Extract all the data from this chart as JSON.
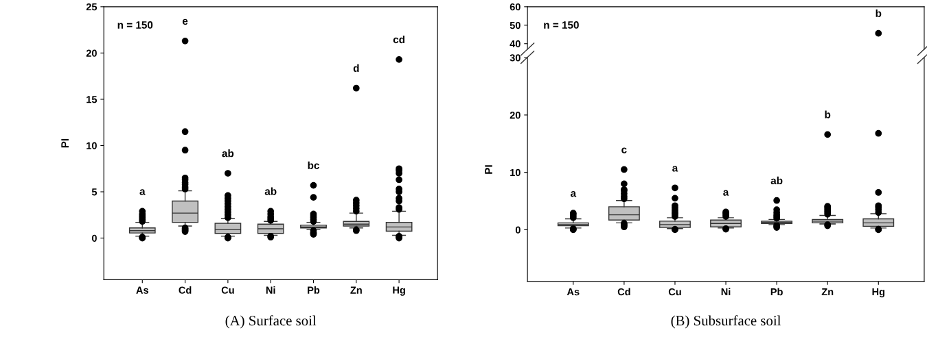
{
  "chart_data": [
    {
      "type": "box",
      "ylabel": "PI",
      "subtitle": "(A) Surface soil",
      "categories": [
        "As",
        "Cd",
        "Cu",
        "Ni",
        "Pb",
        "Zn",
        "Hg"
      ],
      "ylim": [
        -4.5,
        25
      ],
      "yticks": [
        0,
        5,
        10,
        15,
        20,
        25
      ],
      "color": "#c0c0c0",
      "boxes": [
        {
          "low": 0.2,
          "q1": 0.55,
          "median": 0.8,
          "q3": 1.1,
          "high": 1.7,
          "outliers": [
            0.0,
            0.05,
            0.1,
            1.8,
            2.0,
            2.2,
            2.4,
            2.6,
            2.9
          ]
        },
        {
          "low": 1.3,
          "q1": 1.7,
          "median": 2.7,
          "q3": 4.0,
          "high": 5.1,
          "outliers": [
            0.7,
            0.8,
            0.9,
            1.0,
            1.1,
            5.3,
            5.5,
            5.8,
            6.0,
            6.3,
            6.5,
            9.5,
            11.5,
            21.3
          ]
        },
        {
          "low": 0.2,
          "q1": 0.5,
          "median": 0.9,
          "q3": 1.6,
          "high": 2.1,
          "outliers": [
            0.0,
            0.05,
            0.1,
            2.2,
            2.5,
            2.8,
            3.1,
            3.4,
            3.7,
            4.0,
            4.3,
            4.6,
            7.0
          ]
        },
        {
          "low": 0.3,
          "q1": 0.5,
          "median": 1.0,
          "q3": 1.5,
          "high": 1.8,
          "outliers": [
            0.1,
            0.2,
            1.9,
            2.1,
            2.3,
            2.6,
            2.9
          ]
        },
        {
          "low": 0.9,
          "q1": 1.1,
          "median": 1.2,
          "q3": 1.4,
          "high": 1.7,
          "outliers": [
            0.4,
            0.5,
            0.6,
            0.8,
            1.8,
            2.0,
            2.2,
            2.4,
            2.6,
            4.4,
            5.7
          ]
        },
        {
          "low": 1.1,
          "q1": 1.3,
          "median": 1.5,
          "q3": 1.8,
          "high": 2.7,
          "outliers": [
            0.8,
            0.9,
            2.9,
            3.2,
            3.5,
            3.8,
            4.1,
            16.2
          ]
        },
        {
          "low": 0.3,
          "q1": 0.75,
          "median": 1.2,
          "q3": 1.7,
          "high": 2.9,
          "outliers": [
            0.0,
            0.1,
            0.2,
            3.1,
            3.3,
            4.0,
            4.3,
            5.0,
            5.3,
            6.3,
            7.0,
            7.3,
            7.5,
            19.3
          ]
        }
      ],
      "annotations": [
        "n = 150",
        "a",
        "e",
        "ab",
        "ab",
        "bc",
        "d",
        "cd"
      ]
    },
    {
      "type": "scatter",
      "categories": [
        "As",
        "Cd",
        "Cu",
        "Ni",
        "Pb",
        "Zn",
        "Hg"
      ],
      "ylim": [
        37,
        60
      ],
      "yticks": [
        40,
        50,
        60
      ],
      "tick_labels": "y",
      "marker": "circle",
      "series": [
        {
          "x": [
            "Hg"
          ],
          "values": [
            45.6
          ],
          "color": "#000000"
        }
      ],
      "annotations": [
        "n = 150",
        "b"
      ]
    },
    {
      "type": "box",
      "ylabel": "PI",
      "subtitle": "(B) Subsurface soil",
      "categories": [
        "As",
        "Cd",
        "Cu",
        "Ni",
        "Pb",
        "Zn",
        "Hg"
      ],
      "ylim": [
        -9,
        30
      ],
      "yticks": [
        0,
        10,
        20,
        30
      ],
      "color": "#c0c0c0",
      "boxes": [
        {
          "low": 0.3,
          "q1": 0.7,
          "median": 0.9,
          "q3": 1.2,
          "high": 1.9,
          "outliers": [
            0.0,
            0.1,
            0.2,
            2.1,
            2.4,
            2.7,
            2.9
          ]
        },
        {
          "low": 1.2,
          "q1": 1.7,
          "median": 2.6,
          "q3": 4.0,
          "high": 5.1,
          "outliers": [
            0.5,
            0.7,
            0.9,
            1.1,
            5.4,
            5.8,
            6.3,
            6.8,
            7.0,
            8.0,
            10.5
          ]
        },
        {
          "low": 0.2,
          "q1": 0.4,
          "median": 0.9,
          "q3": 1.5,
          "high": 2.1,
          "outliers": [
            0.0,
            0.1,
            2.3,
            2.7,
            3.0,
            3.4,
            3.8,
            4.2,
            5.5,
            7.3
          ]
        },
        {
          "low": 0.3,
          "q1": 0.5,
          "median": 1.1,
          "q3": 1.7,
          "high": 2.1,
          "outliers": [
            0.1,
            0.2,
            2.3,
            2.6,
            2.9,
            3.1
          ]
        },
        {
          "low": 0.9,
          "q1": 1.1,
          "median": 1.3,
          "q3": 1.5,
          "high": 1.8,
          "outliers": [
            0.4,
            0.6,
            0.8,
            2.0,
            2.3,
            2.6,
            3.0,
            3.5,
            5.1
          ]
        },
        {
          "low": 1.0,
          "q1": 1.2,
          "median": 1.5,
          "q3": 1.8,
          "high": 2.5,
          "outliers": [
            0.7,
            0.9,
            2.7,
            3.0,
            3.3,
            3.6,
            3.9,
            4.1,
            16.6
          ]
        },
        {
          "low": 0.3,
          "q1": 0.6,
          "median": 1.2,
          "q3": 1.9,
          "high": 2.8,
          "outliers": [
            0.0,
            0.1,
            3.0,
            3.5,
            3.9,
            4.2,
            6.5,
            16.8
          ]
        }
      ],
      "annotations": [
        "a",
        "c",
        "a",
        "a",
        "ab",
        "b"
      ]
    }
  ]
}
